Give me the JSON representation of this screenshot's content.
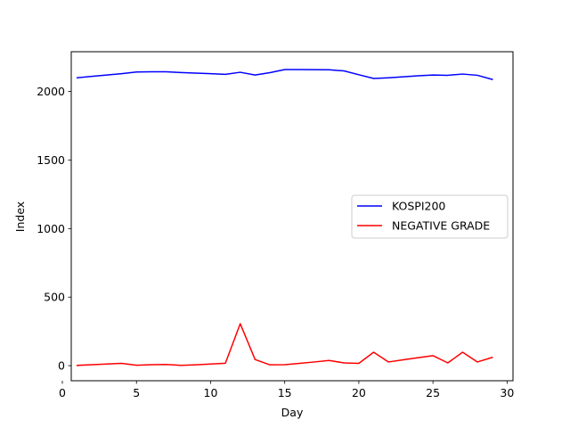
{
  "chart_data": {
    "type": "line",
    "xlabel": "Day",
    "ylabel": "Index",
    "xlim": [
      0.6,
      30.4
    ],
    "ylim": [
      -110,
      2290
    ],
    "xticks": [
      0,
      5,
      10,
      15,
      20,
      25,
      30
    ],
    "yticks": [
      0,
      500,
      1000,
      1500,
      2000
    ],
    "grid": false,
    "legend_position": "center-right",
    "x": [
      1,
      2,
      3,
      4,
      5,
      6,
      7,
      8,
      9,
      10,
      11,
      12,
      13,
      14,
      15,
      16,
      17,
      18,
      19,
      20,
      21,
      22,
      23,
      24,
      25,
      26,
      27,
      28,
      29
    ],
    "series": [
      {
        "name": "KOSPI200",
        "color": "#0000ff",
        "values": [
          2100,
          2110,
          2120,
          2130,
          2142,
          2144,
          2144,
          2138,
          2134,
          2130,
          2125,
          2140,
          2120,
          2137,
          2160,
          2160,
          2159,
          2158,
          2150,
          2122,
          2095,
          2100,
          2107,
          2114,
          2120,
          2118,
          2127,
          2118,
          2088
        ]
      },
      {
        "name": "NEGATIVE GRADE",
        "color": "#ff0000",
        "values": [
          2,
          7,
          12,
          17,
          3,
          7,
          9,
          2,
          6,
          12,
          18,
          306,
          45,
          6,
          7,
          17,
          27,
          38,
          20,
          17,
          98,
          27,
          43,
          58,
          73,
          20,
          98,
          27,
          60
        ]
      }
    ]
  }
}
